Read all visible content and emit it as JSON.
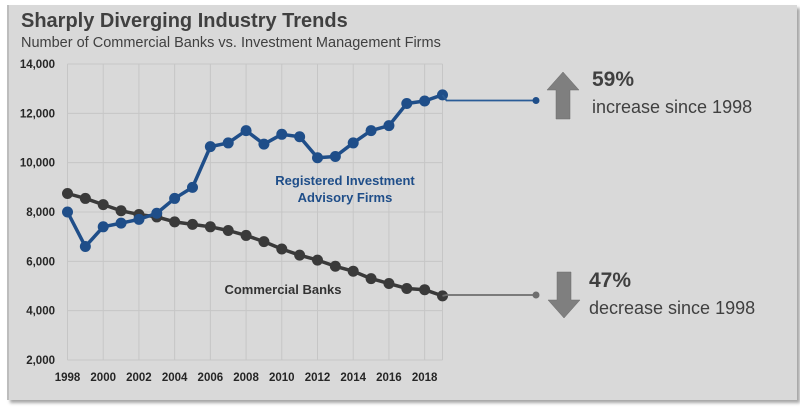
{
  "header": {
    "title": "Sharply Diverging Industry Trends",
    "subtitle": "Number of Commercial Banks vs. Investment Management Firms"
  },
  "callouts": {
    "increase": {
      "value": "59%",
      "text": "increase since 1998",
      "direction": "up",
      "icon": "arrow-up-icon",
      "color": "#7f7f7f"
    },
    "decrease": {
      "value": "47%",
      "text": "decrease since 1998",
      "direction": "down",
      "icon": "arrow-down-icon",
      "color": "#7f7f7f"
    }
  },
  "chart_data": {
    "type": "line",
    "title": "Sharply Diverging Industry Trends",
    "subtitle": "Number of Commercial Banks vs. Investment Management Firms",
    "xlabel": "",
    "ylabel": "",
    "x": [
      1998,
      1999,
      2000,
      2001,
      2002,
      2003,
      2004,
      2005,
      2006,
      2007,
      2008,
      2009,
      2010,
      2011,
      2012,
      2013,
      2014,
      2015,
      2016,
      2017,
      2018,
      2019
    ],
    "x_tick_labels": [
      "1998",
      "2000",
      "2002",
      "2004",
      "2006",
      "2008",
      "2010",
      "2012",
      "2014",
      "2016",
      "2018"
    ],
    "y_tick_labels": [
      "2,000",
      "4,000",
      "6,000",
      "8,000",
      "10,000",
      "12,000",
      "14,000"
    ],
    "y_ticks": [
      2000,
      4000,
      6000,
      8000,
      10000,
      12000,
      14000
    ],
    "xlim": [
      1998,
      2019
    ],
    "ylim": [
      2000,
      14000
    ],
    "grid": true,
    "legend": "inline labels",
    "series": [
      {
        "name": "Registered Investment Advisory Firms",
        "label_lines": [
          "Registered Investment",
          "Advisory Firms"
        ],
        "color": "#1f4e89",
        "values": [
          8000,
          6600,
          7400,
          7550,
          7700,
          7950,
          8550,
          9000,
          10650,
          10800,
          11300,
          10750,
          11150,
          11050,
          10200,
          10250,
          10800,
          11300,
          11500,
          12400,
          12500,
          12750
        ]
      },
      {
        "name": "Commercial Banks",
        "label_lines": [
          "Commercial  Banks"
        ],
        "color": "#3a3a3a",
        "values": [
          8750,
          8550,
          8300,
          8050,
          7900,
          7800,
          7600,
          7500,
          7400,
          7250,
          7050,
          6800,
          6500,
          6250,
          6050,
          5800,
          5600,
          5300,
          5100,
          4900,
          4850,
          4600
        ]
      }
    ]
  }
}
